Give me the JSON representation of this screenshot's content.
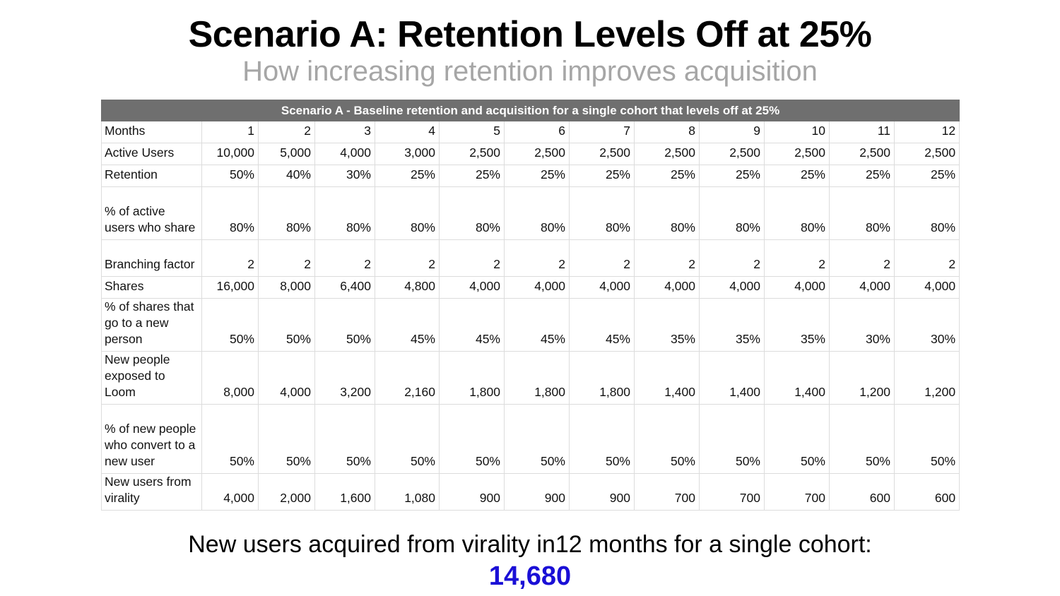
{
  "title": "Scenario A: Retention Levels Off at 25%",
  "subtitle": "How increasing retention improves acquisition",
  "table": {
    "caption": "Scenario A - Baseline retention and acquisition for a single cohort that levels off at 25%",
    "rows": [
      {
        "label": "Months",
        "lines": 1,
        "values": [
          "1",
          "2",
          "3",
          "4",
          "5",
          "6",
          "7",
          "8",
          "9",
          "10",
          "11",
          "12"
        ]
      },
      {
        "label": "Active Users",
        "lines": 1,
        "values": [
          "10,000",
          "5,000",
          "4,000",
          "3,000",
          "2,500",
          "2,500",
          "2,500",
          "2,500",
          "2,500",
          "2,500",
          "2,500",
          "2,500"
        ]
      },
      {
        "label": "Retention",
        "lines": 1,
        "values": [
          "50%",
          "40%",
          "30%",
          "25%",
          "25%",
          "25%",
          "25%",
          "25%",
          "25%",
          "25%",
          "25%",
          "25%"
        ]
      },
      {
        "label": "% of active users who share",
        "lines": 3,
        "values": [
          "80%",
          "80%",
          "80%",
          "80%",
          "80%",
          "80%",
          "80%",
          "80%",
          "80%",
          "80%",
          "80%",
          "80%"
        ]
      },
      {
        "label": "Branching factor",
        "lines": 2,
        "values": [
          "2",
          "2",
          "2",
          "2",
          "2",
          "2",
          "2",
          "2",
          "2",
          "2",
          "2",
          "2"
        ]
      },
      {
        "label": "Shares",
        "lines": 1,
        "values": [
          "16,000",
          "8,000",
          "6,400",
          "4,800",
          "4,000",
          "4,000",
          "4,000",
          "4,000",
          "4,000",
          "4,000",
          "4,000",
          "4,000"
        ]
      },
      {
        "label": "% of shares that go to a new person",
        "lines": 3,
        "values": [
          "50%",
          "50%",
          "50%",
          "45%",
          "45%",
          "45%",
          "45%",
          "35%",
          "35%",
          "35%",
          "30%",
          "30%"
        ]
      },
      {
        "label": "New people exposed to Loom",
        "lines": 3,
        "values": [
          "8,000",
          "4,000",
          "3,200",
          "2,160",
          "1,800",
          "1,800",
          "1,800",
          "1,400",
          "1,400",
          "1,400",
          "1,200",
          "1,200"
        ]
      },
      {
        "label": "% of new people who convert to a new user",
        "lines": 4,
        "values": [
          "50%",
          "50%",
          "50%",
          "50%",
          "50%",
          "50%",
          "50%",
          "50%",
          "50%",
          "50%",
          "50%",
          "50%"
        ]
      },
      {
        "label": "New users from virality",
        "lines": 2,
        "values": [
          "4,000",
          "2,000",
          "1,600",
          "1,080",
          "900",
          "900",
          "900",
          "700",
          "700",
          "700",
          "600",
          "600"
        ]
      }
    ]
  },
  "footer": {
    "text": "New users acquired from virality in12 months for a single cohort:",
    "total": "14,680"
  },
  "colors": {
    "caption_bg": "#6f6f6f",
    "subtitle": "#a6a6a6",
    "total": "#1a0fd6"
  }
}
